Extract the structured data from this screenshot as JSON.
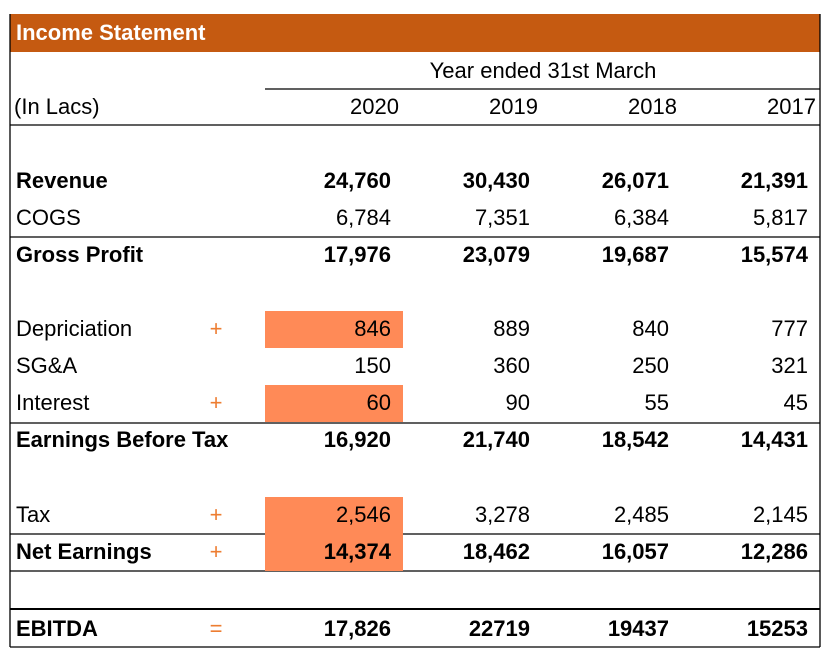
{
  "header": {
    "title": "Income Statement"
  },
  "table": {
    "caption": "Year ended 31st March",
    "unit": "(In Lacs)",
    "years": [
      "2020",
      "2019",
      "2018",
      "2017"
    ],
    "rows": [
      {
        "label": "Revenue",
        "values": [
          "24,760",
          "30,430",
          "26,071",
          "21,391"
        ]
      },
      {
        "label": "COGS",
        "values": [
          "6,784",
          "7,351",
          "6,384",
          "5,817"
        ]
      },
      {
        "label": "Gross Profit",
        "values": [
          "17,976",
          "23,079",
          "19,687",
          "15,574"
        ]
      },
      {
        "label": "Depriciation",
        "sign": "+",
        "values": [
          "846",
          "889",
          "840",
          "777"
        ]
      },
      {
        "label": "SG&A",
        "values": [
          "150",
          "360",
          "250",
          "321"
        ]
      },
      {
        "label": "Interest",
        "sign": "+",
        "values": [
          "60",
          "90",
          "55",
          "45"
        ]
      },
      {
        "label": "Earnings Before Tax",
        "values": [
          "16,920",
          "21,740",
          "18,542",
          "14,431"
        ]
      },
      {
        "label": "Tax",
        "sign": "+",
        "values": [
          "2,546",
          "3,278",
          "2,485",
          "2,145"
        ]
      },
      {
        "label": "Net Earnings",
        "sign": "+",
        "values": [
          "14,374",
          "18,462",
          "16,057",
          "12,286"
        ]
      },
      {
        "label": "EBITDA",
        "sign": "=",
        "values": [
          "17,826",
          "22719",
          "19437",
          "15253"
        ]
      }
    ]
  }
}
